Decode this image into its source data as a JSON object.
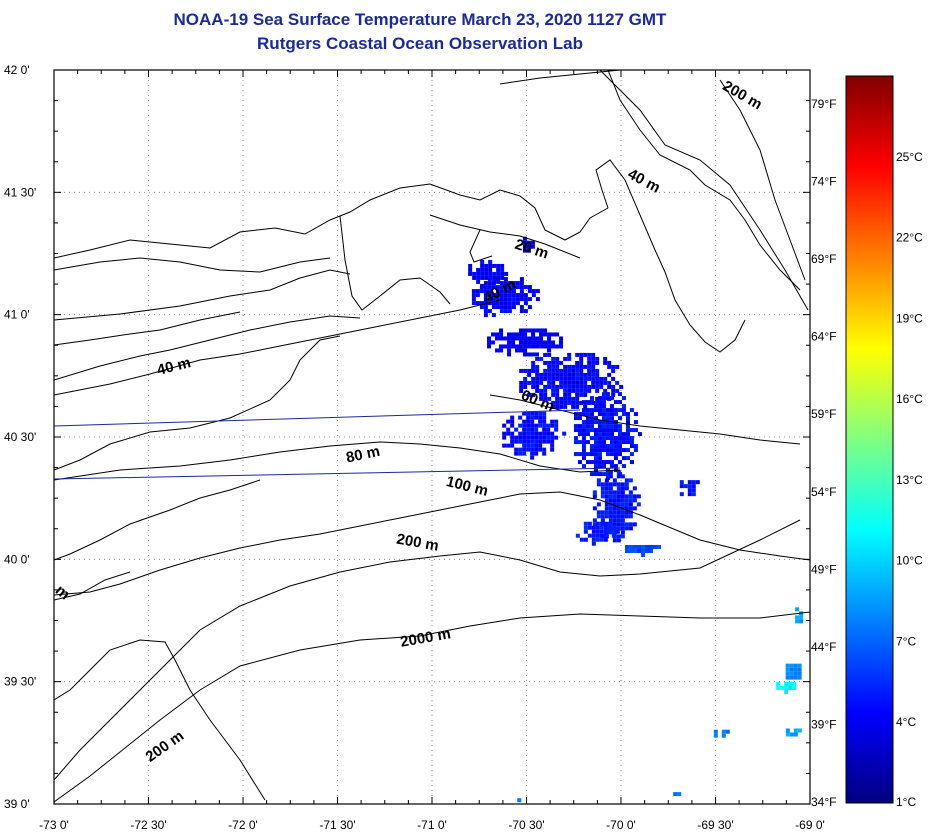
{
  "header": {
    "title": "NOAA-19 Sea Surface Temperature March 23, 2020 1127 GMT",
    "subtitle": "Rutgers Coastal Ocean Observation Lab"
  },
  "map": {
    "lon_range": [
      -73.0,
      -69.0
    ],
    "lat_range": [
      39.0,
      42.0
    ],
    "lon_ticks": [
      {
        "value": -73.0,
        "label": "-73 0'"
      },
      {
        "value": -72.5,
        "label": "-72 30'"
      },
      {
        "value": -72.0,
        "label": "-72 0'"
      },
      {
        "value": -71.5,
        "label": "-71 30'"
      },
      {
        "value": -71.0,
        "label": "-71 0'"
      },
      {
        "value": -70.5,
        "label": "-70 30'"
      },
      {
        "value": -70.0,
        "label": "-70 0'"
      },
      {
        "value": -69.5,
        "label": "-69 30'"
      },
      {
        "value": -69.0,
        "label": "-69 0'"
      }
    ],
    "lat_ticks": [
      {
        "value": 42.0,
        "label": "42 0'"
      },
      {
        "value": 41.5,
        "label": "41 30'"
      },
      {
        "value": 41.0,
        "label": "41 0'"
      },
      {
        "value": 40.5,
        "label": "40 30'"
      },
      {
        "value": 40.0,
        "label": "40 0'"
      },
      {
        "value": 39.5,
        "label": "39 30'"
      },
      {
        "value": 39.0,
        "label": "39 0'"
      }
    ],
    "fahrenheit_ticks": [
      {
        "value": 79,
        "label": "79°F"
      },
      {
        "value": 74,
        "label": "74°F"
      },
      {
        "value": 69,
        "label": "69°F"
      },
      {
        "value": 64,
        "label": "64°F"
      },
      {
        "value": 59,
        "label": "59°F"
      },
      {
        "value": 54,
        "label": "54°F"
      },
      {
        "value": 49,
        "label": "49°F"
      },
      {
        "value": 44,
        "label": "44°F"
      },
      {
        "value": 39,
        "label": "39°F"
      },
      {
        "value": 34,
        "label": "34°F"
      }
    ],
    "grid": "dotted",
    "contour_labels": [
      {
        "text": "200 m",
        "lon": -69.37,
        "lat": 41.88
      },
      {
        "text": "40 m",
        "lon": -69.89,
        "lat": 41.53
      },
      {
        "text": "20 m",
        "lon": -70.48,
        "lat": 41.25
      },
      {
        "text": "40 m",
        "lon": -70.63,
        "lat": 41.08
      },
      {
        "text": "40 m",
        "lon": -72.36,
        "lat": 40.77
      },
      {
        "text": "60 m",
        "lon": -70.45,
        "lat": 40.63
      },
      {
        "text": "80 m",
        "lon": -71.36,
        "lat": 40.41
      },
      {
        "text": "100 m",
        "lon": -70.82,
        "lat": 40.28
      },
      {
        "text": "200 m",
        "lon": -71.08,
        "lat": 40.05
      },
      {
        "text": "2000 m",
        "lon": -71.03,
        "lat": 39.66
      },
      {
        "text": "200 m",
        "lon": -72.4,
        "lat": 39.22
      },
      {
        "text": "m",
        "lon": -72.97,
        "lat": 39.85
      }
    ],
    "sst_patches": [
      {
        "lon": -70.5,
        "lat": 41.3,
        "w": 0.08,
        "h": 0.07,
        "temp_c": 4.0
      },
      {
        "lon": -70.72,
        "lat": 41.18,
        "w": 0.22,
        "h": 0.12,
        "temp_c": 4.2
      },
      {
        "lon": -70.62,
        "lat": 41.08,
        "w": 0.38,
        "h": 0.18,
        "temp_c": 4.3
      },
      {
        "lon": -70.52,
        "lat": 40.9,
        "w": 0.42,
        "h": 0.12,
        "temp_c": 4.1
      },
      {
        "lon": -70.28,
        "lat": 40.74,
        "w": 0.56,
        "h": 0.24,
        "temp_c": 4.4
      },
      {
        "lon": -70.48,
        "lat": 40.52,
        "w": 0.34,
        "h": 0.2,
        "temp_c": 4.6
      },
      {
        "lon": -70.09,
        "lat": 40.52,
        "w": 0.36,
        "h": 0.36,
        "temp_c": 4.7
      },
      {
        "lon": -70.04,
        "lat": 40.23,
        "w": 0.26,
        "h": 0.3,
        "temp_c": 4.9
      },
      {
        "lon": -70.14,
        "lat": 40.12,
        "w": 0.24,
        "h": 0.1,
        "temp_c": 5.0
      },
      {
        "lon": -69.64,
        "lat": 40.3,
        "w": 0.14,
        "h": 0.08,
        "temp_c": 4.8
      },
      {
        "lon": -69.89,
        "lat": 40.05,
        "w": 0.22,
        "h": 0.05,
        "temp_c": 6.2
      },
      {
        "lon": -69.07,
        "lat": 39.78,
        "w": 0.06,
        "h": 0.08,
        "temp_c": 8.6
      },
      {
        "lon": -69.1,
        "lat": 39.55,
        "w": 0.1,
        "h": 0.08,
        "temp_c": 8.1
      },
      {
        "lon": -69.14,
        "lat": 39.49,
        "w": 0.12,
        "h": 0.05,
        "temp_c": 11.0
      },
      {
        "lon": -69.1,
        "lat": 39.3,
        "w": 0.14,
        "h": 0.05,
        "temp_c": 8.8
      },
      {
        "lon": -69.48,
        "lat": 39.3,
        "w": 0.1,
        "h": 0.04,
        "temp_c": 7.2
      },
      {
        "lon": -69.71,
        "lat": 39.05,
        "w": 0.07,
        "h": 0.03,
        "temp_c": 7.5
      },
      {
        "lon": -70.55,
        "lat": 39.03,
        "w": 0.04,
        "h": 0.02,
        "temp_c": 8.0
      }
    ]
  },
  "colorbar": {
    "range_c": [
      1,
      28
    ],
    "label_temps_c": [
      25,
      22,
      19,
      16,
      13,
      10,
      7,
      4,
      1
    ],
    "labels": [
      "25°C",
      "22°C",
      "19°C",
      "16°C",
      "13°C",
      "10°C",
      "7°C",
      "4°C",
      "1°C"
    ],
    "colors": [
      "#000080",
      "#0000ff",
      "#0080ff",
      "#00ffff",
      "#80ff80",
      "#ffff00",
      "#ff8000",
      "#ff0000",
      "#800000"
    ]
  }
}
